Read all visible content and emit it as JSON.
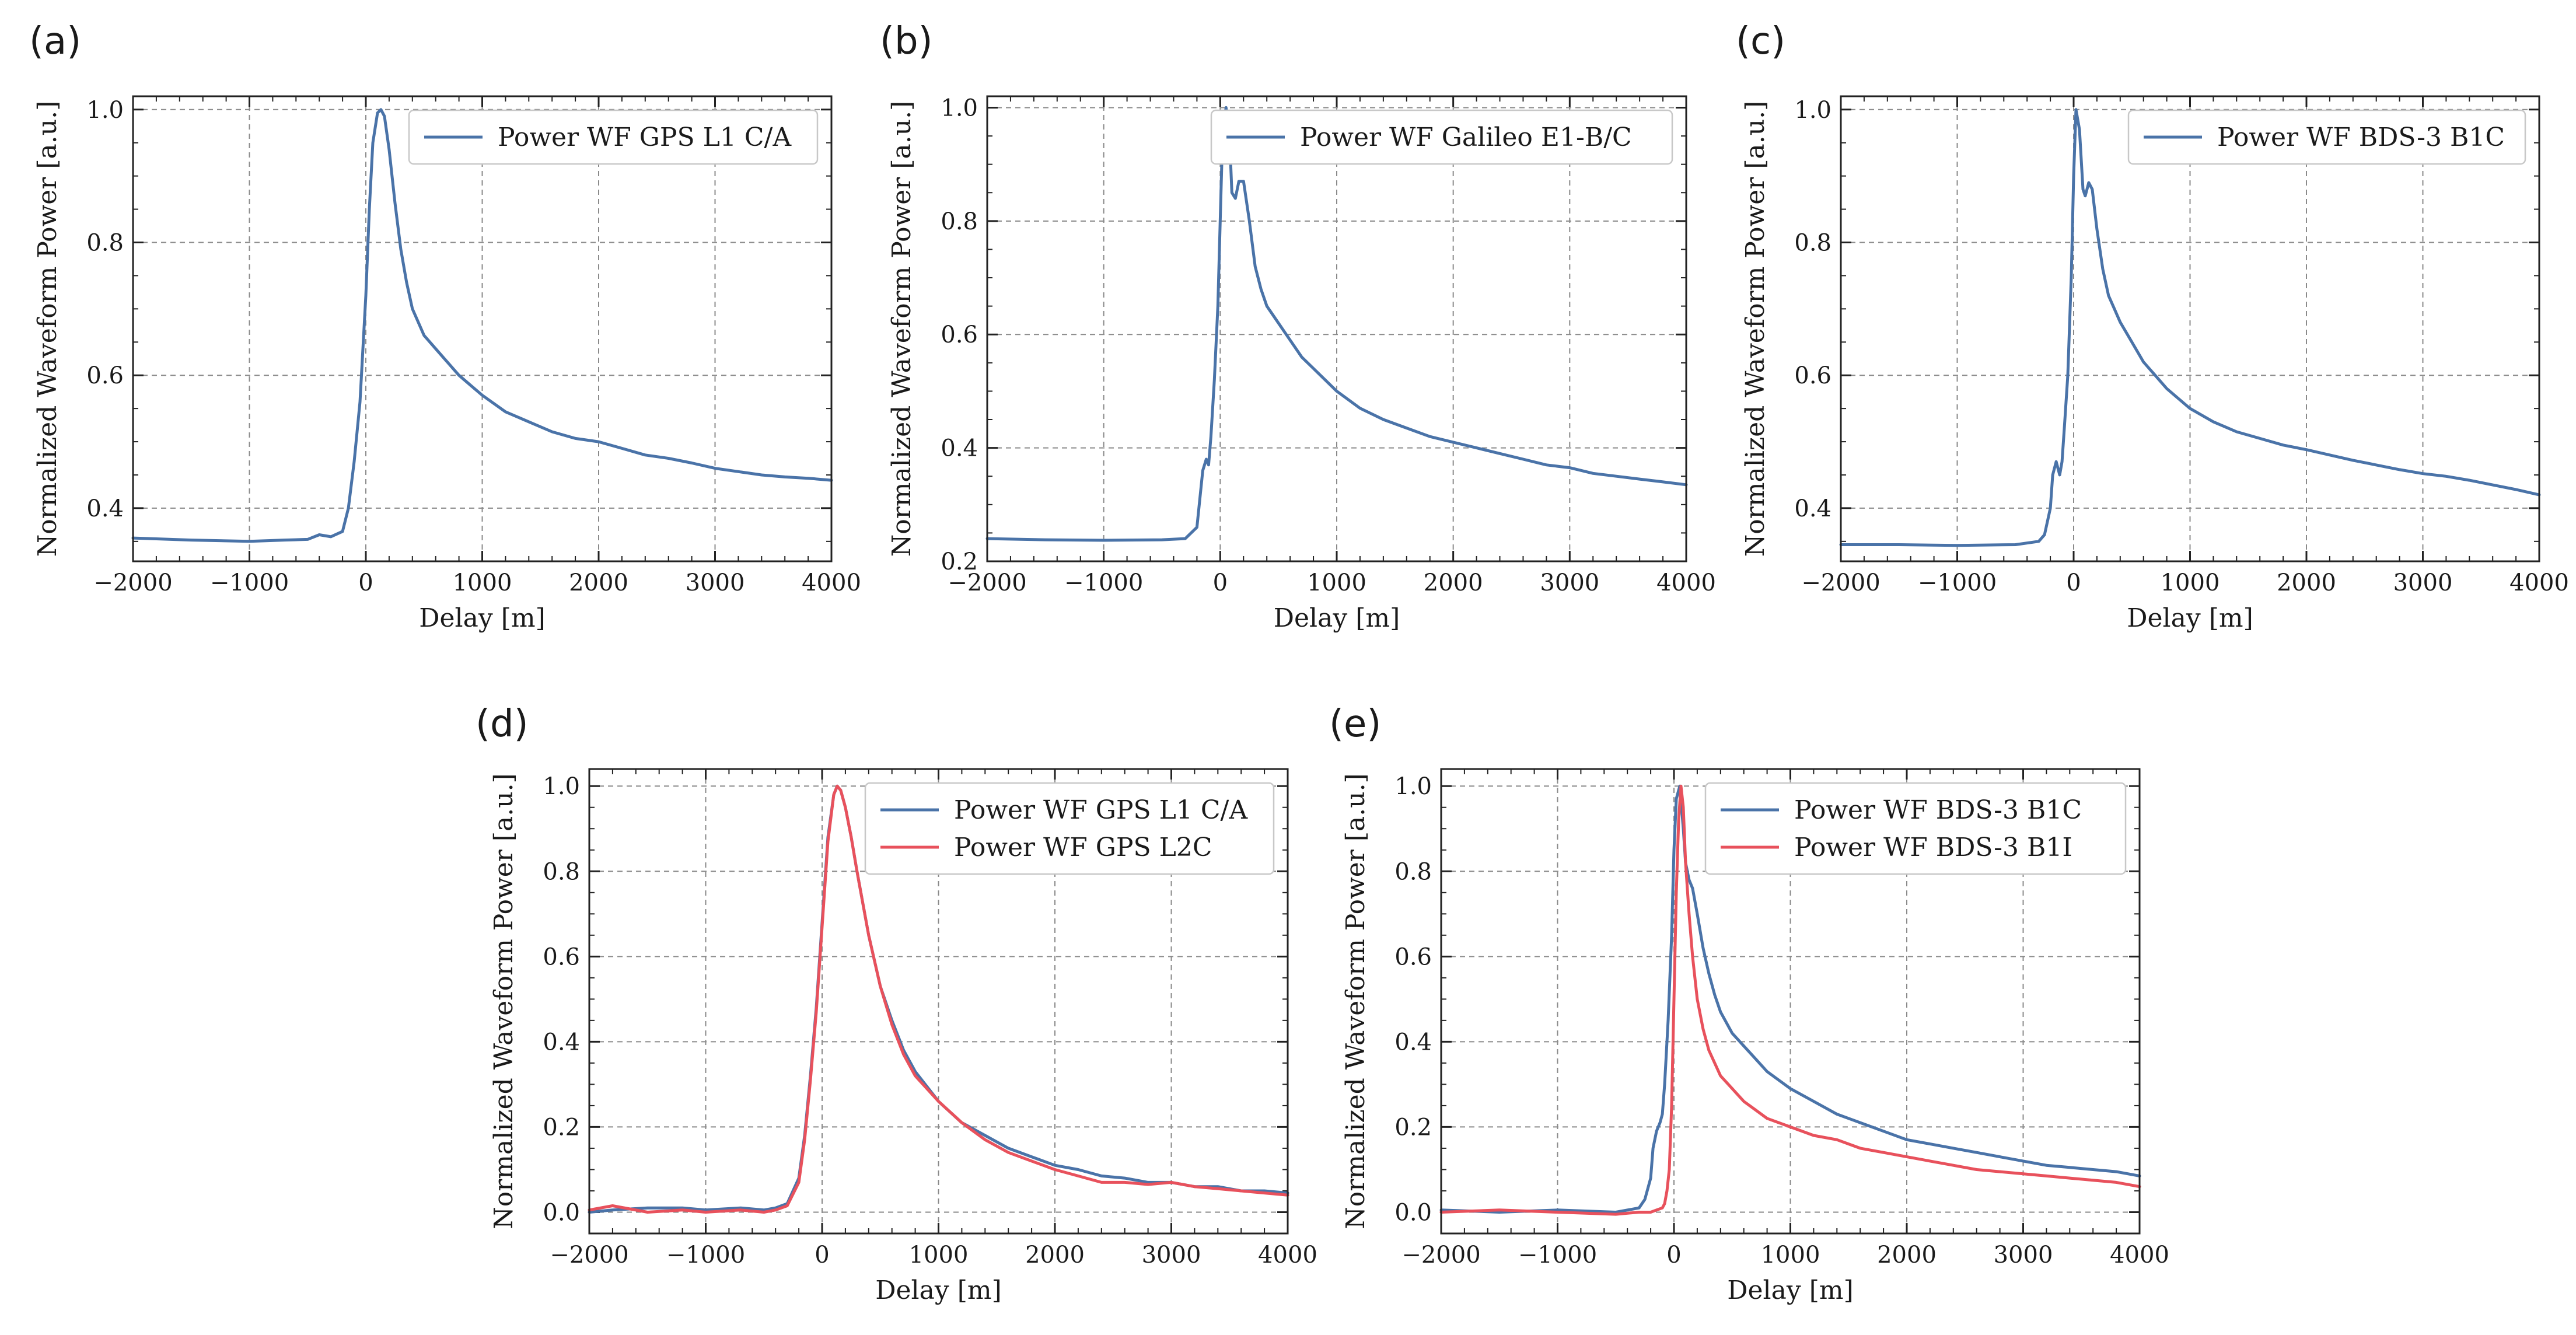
{
  "colors": {
    "blue": "#4a73a8",
    "red": "#e8515c"
  },
  "chart_data": [
    {
      "panel": "(a)",
      "type": "line",
      "xlabel": "Delay [m]",
      "ylabel": "Normalized Waveform Power [a.u.]",
      "xlim": [
        -2000,
        4000
      ],
      "ylim": [
        0.32,
        1.02
      ],
      "xticks": [
        -2000,
        -1000,
        0,
        1000,
        2000,
        3000,
        4000
      ],
      "xtick_labels": [
        "−2000",
        "−1000",
        "0",
        "1000",
        "2000",
        "3000",
        "4000"
      ],
      "yticks": [
        0.4,
        0.6,
        0.8,
        1.0
      ],
      "ytick_labels": [
        "0.4",
        "0.6",
        "0.8",
        "1.0"
      ],
      "legend_position": "top-right",
      "series": [
        {
          "name": "Power WF GPS L1 C/A",
          "color": "#4a73a8",
          "x": [
            -2000,
            -1500,
            -1000,
            -700,
            -500,
            -400,
            -300,
            -200,
            -150,
            -100,
            -50,
            0,
            30,
            60,
            100,
            130,
            160,
            200,
            250,
            300,
            350,
            400,
            500,
            600,
            700,
            800,
            900,
            1000,
            1200,
            1400,
            1600,
            1800,
            2000,
            2200,
            2400,
            2600,
            2800,
            3000,
            3200,
            3400,
            3600,
            3800,
            4000
          ],
          "y": [
            0.355,
            0.352,
            0.35,
            0.352,
            0.353,
            0.36,
            0.357,
            0.365,
            0.4,
            0.47,
            0.56,
            0.72,
            0.85,
            0.95,
            0.995,
            1.0,
            0.99,
            0.94,
            0.86,
            0.79,
            0.74,
            0.7,
            0.66,
            0.64,
            0.62,
            0.6,
            0.585,
            0.57,
            0.545,
            0.53,
            0.515,
            0.505,
            0.5,
            0.49,
            0.48,
            0.475,
            0.468,
            0.46,
            0.455,
            0.45,
            0.447,
            0.445,
            0.442
          ]
        }
      ]
    },
    {
      "panel": "(b)",
      "type": "line",
      "xlabel": "Delay [m]",
      "ylabel": "Normalized Waveform Power [a.u.]",
      "xlim": [
        -2000,
        4000
      ],
      "ylim": [
        0.2,
        1.02
      ],
      "xticks": [
        -2000,
        -1000,
        0,
        1000,
        2000,
        3000,
        4000
      ],
      "xtick_labels": [
        "−2000",
        "−1000",
        "0",
        "1000",
        "2000",
        "3000",
        "4000"
      ],
      "yticks": [
        0.2,
        0.4,
        0.6,
        0.8,
        1.0
      ],
      "ytick_labels": [
        "0.2",
        "0.4",
        "0.6",
        "0.8",
        "1.0"
      ],
      "legend_position": "top-right",
      "series": [
        {
          "name": "Power WF Galileo E1-B/C",
          "color": "#4a73a8",
          "x": [
            -2000,
            -1500,
            -1000,
            -500,
            -300,
            -200,
            -180,
            -150,
            -120,
            -100,
            -80,
            -50,
            -20,
            0,
            20,
            50,
            80,
            100,
            130,
            160,
            200,
            250,
            300,
            350,
            400,
            500,
            600,
            700,
            800,
            1000,
            1200,
            1400,
            1600,
            1800,
            2000,
            2200,
            2400,
            2600,
            2800,
            3000,
            3200,
            3400,
            3600,
            3800,
            4000
          ],
          "y": [
            0.24,
            0.238,
            0.237,
            0.238,
            0.24,
            0.26,
            0.3,
            0.36,
            0.38,
            0.37,
            0.42,
            0.52,
            0.65,
            0.8,
            0.95,
            1.0,
            0.95,
            0.85,
            0.84,
            0.87,
            0.87,
            0.8,
            0.72,
            0.68,
            0.65,
            0.62,
            0.59,
            0.56,
            0.54,
            0.5,
            0.47,
            0.45,
            0.435,
            0.42,
            0.41,
            0.4,
            0.39,
            0.38,
            0.37,
            0.365,
            0.355,
            0.35,
            0.345,
            0.34,
            0.335
          ]
        }
      ]
    },
    {
      "panel": "(c)",
      "type": "line",
      "xlabel": "Delay [m]",
      "ylabel": "Normalized Waveform Power [a.u.]",
      "xlim": [
        -2000,
        4000
      ],
      "ylim": [
        0.32,
        1.02
      ],
      "xticks": [
        -2000,
        -1000,
        0,
        1000,
        2000,
        3000,
        4000
      ],
      "xtick_labels": [
        "−2000",
        "−1000",
        "0",
        "1000",
        "2000",
        "3000",
        "4000"
      ],
      "yticks": [
        0.4,
        0.6,
        0.8,
        1.0
      ],
      "ytick_labels": [
        "0.4",
        "0.6",
        "0.8",
        "1.0"
      ],
      "legend_position": "top-right",
      "series": [
        {
          "name": "Power WF BDS-3 B1C",
          "color": "#4a73a8",
          "x": [
            -2000,
            -1500,
            -1000,
            -500,
            -300,
            -250,
            -200,
            -180,
            -150,
            -120,
            -100,
            -80,
            -50,
            -20,
            0,
            20,
            50,
            80,
            100,
            130,
            160,
            200,
            250,
            300,
            350,
            400,
            500,
            600,
            700,
            800,
            900,
            1000,
            1200,
            1400,
            1600,
            1800,
            2000,
            2200,
            2400,
            2600,
            2800,
            3000,
            3200,
            3400,
            3600,
            3800,
            4000
          ],
          "y": [
            0.345,
            0.345,
            0.344,
            0.345,
            0.35,
            0.36,
            0.4,
            0.45,
            0.47,
            0.45,
            0.47,
            0.52,
            0.6,
            0.75,
            0.9,
            1.0,
            0.97,
            0.88,
            0.87,
            0.89,
            0.88,
            0.82,
            0.76,
            0.72,
            0.7,
            0.68,
            0.65,
            0.62,
            0.6,
            0.58,
            0.565,
            0.55,
            0.53,
            0.515,
            0.505,
            0.495,
            0.488,
            0.48,
            0.472,
            0.465,
            0.458,
            0.452,
            0.448,
            0.442,
            0.435,
            0.428,
            0.42
          ]
        }
      ]
    },
    {
      "panel": "(d)",
      "type": "line",
      "xlabel": "Delay [m]",
      "ylabel": "Normalized Waveform Power [a.u.]",
      "xlim": [
        -2000,
        4000
      ],
      "ylim": [
        -0.05,
        1.04
      ],
      "xticks": [
        -2000,
        -1000,
        0,
        1000,
        2000,
        3000,
        4000
      ],
      "xtick_labels": [
        "−2000",
        "−1000",
        "0",
        "1000",
        "2000",
        "3000",
        "4000"
      ],
      "yticks": [
        0.0,
        0.2,
        0.4,
        0.6,
        0.8,
        1.0
      ],
      "ytick_labels": [
        "0.0",
        "0.2",
        "0.4",
        "0.6",
        "0.8",
        "1.0"
      ],
      "legend_position": "top-right",
      "series": [
        {
          "name": "Power WF GPS L1 C/A",
          "color": "#4a73a8",
          "x": [
            -2000,
            -1800,
            -1500,
            -1200,
            -1000,
            -700,
            -500,
            -400,
            -300,
            -200,
            -150,
            -100,
            -50,
            0,
            50,
            100,
            130,
            160,
            200,
            250,
            300,
            400,
            500,
            600,
            700,
            800,
            1000,
            1200,
            1400,
            1600,
            1800,
            2000,
            2200,
            2400,
            2600,
            2800,
            3000,
            3200,
            3400,
            3600,
            3800,
            4000
          ],
          "y": [
            0.0,
            0.005,
            0.01,
            0.01,
            0.005,
            0.01,
            0.005,
            0.01,
            0.02,
            0.08,
            0.18,
            0.32,
            0.48,
            0.68,
            0.88,
            0.98,
            1.0,
            0.99,
            0.95,
            0.88,
            0.8,
            0.65,
            0.53,
            0.45,
            0.38,
            0.33,
            0.26,
            0.21,
            0.18,
            0.15,
            0.13,
            0.11,
            0.1,
            0.085,
            0.08,
            0.07,
            0.07,
            0.06,
            0.06,
            0.05,
            0.05,
            0.045
          ]
        },
        {
          "name": "Power WF GPS L2C",
          "color": "#e8515c",
          "x": [
            -2000,
            -1800,
            -1500,
            -1200,
            -1000,
            -700,
            -500,
            -400,
            -300,
            -200,
            -150,
            -100,
            -50,
            0,
            50,
            100,
            130,
            160,
            200,
            250,
            300,
            400,
            500,
            600,
            700,
            800,
            1000,
            1200,
            1400,
            1600,
            1800,
            2000,
            2200,
            2400,
            2600,
            2800,
            3000,
            3200,
            3400,
            3600,
            3800,
            4000
          ],
          "y": [
            0.005,
            0.015,
            0.0,
            0.005,
            0.0,
            0.005,
            0.0,
            0.005,
            0.015,
            0.07,
            0.17,
            0.31,
            0.47,
            0.67,
            0.87,
            0.98,
            1.0,
            0.99,
            0.95,
            0.88,
            0.8,
            0.65,
            0.53,
            0.44,
            0.37,
            0.32,
            0.26,
            0.21,
            0.17,
            0.14,
            0.12,
            0.1,
            0.085,
            0.07,
            0.07,
            0.065,
            0.07,
            0.06,
            0.055,
            0.05,
            0.045,
            0.04
          ]
        }
      ]
    },
    {
      "panel": "(e)",
      "type": "line",
      "xlabel": "Delay [m]",
      "ylabel": "Normalized Waveform Power [a.u.]",
      "xlim": [
        -2000,
        4000
      ],
      "ylim": [
        -0.05,
        1.04
      ],
      "xticks": [
        -2000,
        -1000,
        0,
        1000,
        2000,
        3000,
        4000
      ],
      "xtick_labels": [
        "−2000",
        "−1000",
        "0",
        "1000",
        "2000",
        "3000",
        "4000"
      ],
      "yticks": [
        0.0,
        0.2,
        0.4,
        0.6,
        0.8,
        1.0
      ],
      "ytick_labels": [
        "0.0",
        "0.2",
        "0.4",
        "0.6",
        "0.8",
        "1.0"
      ],
      "legend_position": "top-right",
      "series": [
        {
          "name": "Power WF BDS-3 B1C",
          "color": "#4a73a8",
          "x": [
            -2000,
            -1500,
            -1000,
            -500,
            -300,
            -250,
            -200,
            -180,
            -150,
            -120,
            -100,
            -80,
            -50,
            -20,
            0,
            20,
            50,
            80,
            100,
            130,
            160,
            200,
            250,
            300,
            350,
            400,
            500,
            600,
            700,
            800,
            1000,
            1200,
            1400,
            1600,
            1800,
            2000,
            2200,
            2400,
            2600,
            2800,
            3000,
            3200,
            3400,
            3600,
            3800,
            4000
          ],
          "y": [
            0.005,
            0.0,
            0.005,
            0.0,
            0.01,
            0.03,
            0.08,
            0.15,
            0.19,
            0.21,
            0.23,
            0.3,
            0.45,
            0.65,
            0.85,
            0.97,
            1.0,
            0.9,
            0.82,
            0.78,
            0.76,
            0.7,
            0.62,
            0.56,
            0.51,
            0.47,
            0.42,
            0.39,
            0.36,
            0.33,
            0.29,
            0.26,
            0.23,
            0.21,
            0.19,
            0.17,
            0.16,
            0.15,
            0.14,
            0.13,
            0.12,
            0.11,
            0.105,
            0.1,
            0.095,
            0.085
          ]
        },
        {
          "name": "Power WF BDS-3 B1I",
          "color": "#e8515c",
          "x": [
            -2000,
            -1500,
            -1000,
            -500,
            -300,
            -200,
            -150,
            -100,
            -80,
            -60,
            -40,
            -20,
            0,
            20,
            40,
            60,
            80,
            100,
            130,
            160,
            200,
            250,
            300,
            400,
            500,
            600,
            700,
            800,
            1000,
            1200,
            1400,
            1600,
            1800,
            2000,
            2200,
            2400,
            2600,
            2800,
            3000,
            3200,
            3400,
            3600,
            3800,
            4000
          ],
          "y": [
            0.0,
            0.005,
            0.0,
            -0.005,
            0.0,
            0.0,
            0.005,
            0.01,
            0.02,
            0.05,
            0.1,
            0.25,
            0.5,
            0.75,
            0.92,
            1.0,
            0.95,
            0.82,
            0.7,
            0.6,
            0.5,
            0.43,
            0.38,
            0.32,
            0.29,
            0.26,
            0.24,
            0.22,
            0.2,
            0.18,
            0.17,
            0.15,
            0.14,
            0.13,
            0.12,
            0.11,
            0.1,
            0.095,
            0.09,
            0.085,
            0.08,
            0.075,
            0.07,
            0.06
          ]
        }
      ]
    }
  ]
}
